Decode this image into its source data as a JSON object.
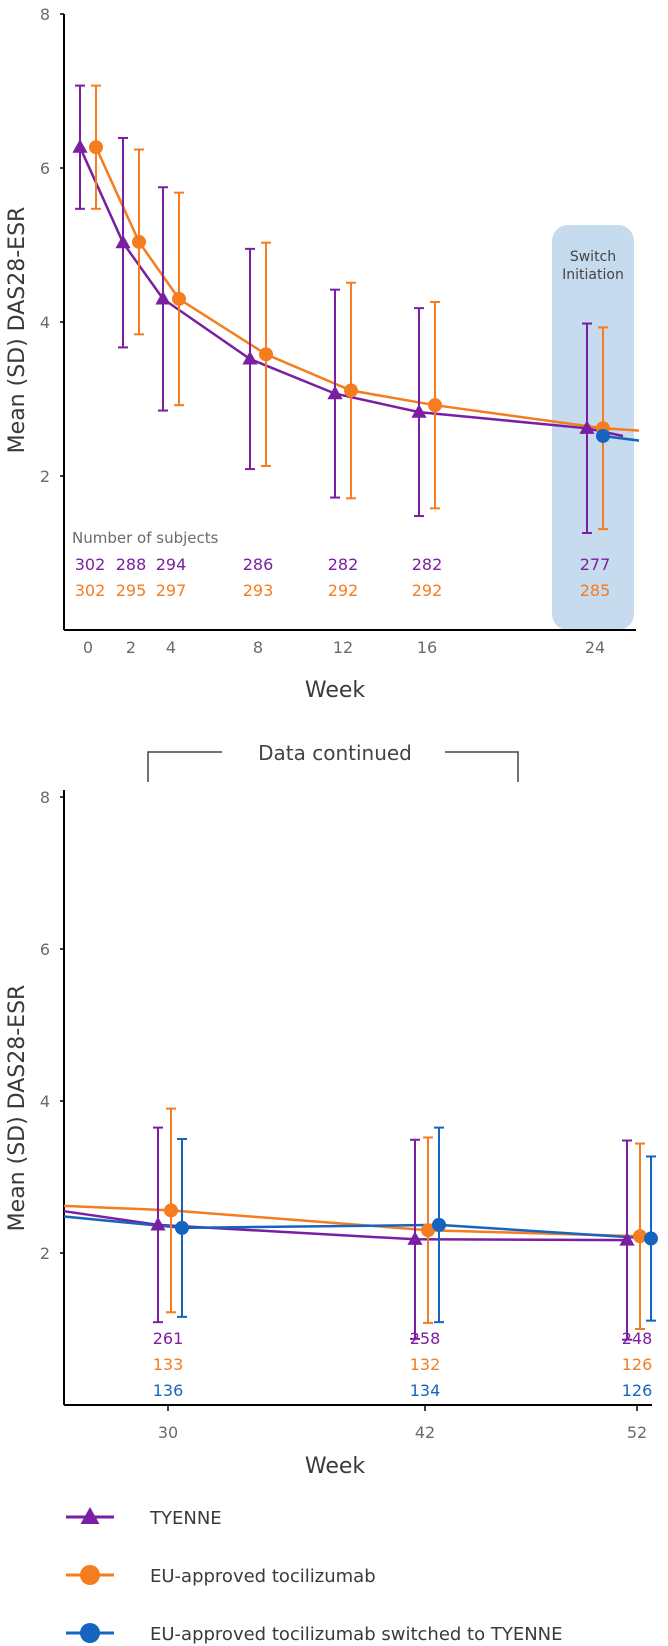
{
  "colors": {
    "tyenne": "#7b1fa2",
    "eu": "#f57c1f",
    "switched": "#1565c0",
    "switch_band": "#c7dbee",
    "axis": "#000000"
  },
  "chart_data": [
    {
      "type": "line",
      "ylabel": "Mean (SD) DAS28-ESR",
      "xlabel": "Week",
      "ylim": [
        0,
        8
      ],
      "yticks": [
        "2",
        "4",
        "6",
        "8"
      ],
      "xticks": [
        "0",
        "2",
        "4",
        "8",
        "12",
        "16",
        "24"
      ],
      "x": [
        0,
        2,
        4,
        8,
        12,
        16,
        24
      ],
      "switch_band": {
        "label_line1": "Switch",
        "label_line2": "Initiation",
        "week": 24
      },
      "subjects_title": "Number of subjects",
      "series": [
        {
          "name": "TYENNE",
          "marker": "triangle",
          "values": [
            6.27,
            5.03,
            4.3,
            3.52,
            3.07,
            2.83,
            2.62
          ],
          "sd": [
            0.8,
            1.36,
            1.45,
            1.43,
            1.35,
            1.35,
            1.36
          ],
          "counts": [
            "302",
            "288",
            "294",
            "286",
            "282",
            "282",
            "277"
          ]
        },
        {
          "name": "EU-approved tocilizumab",
          "marker": "circle",
          "values": [
            6.27,
            5.04,
            4.3,
            3.58,
            3.11,
            2.92,
            2.62
          ],
          "sd": [
            0.8,
            1.2,
            1.38,
            1.45,
            1.4,
            1.34,
            1.31
          ],
          "counts": [
            "302",
            "295",
            "297",
            "293",
            "292",
            "292",
            "285"
          ]
        },
        {
          "name": "EU-approved tocilizumab switched to TYENNE",
          "marker": "circle",
          "x": [
            24
          ],
          "values": [
            2.52
          ],
          "sd": [],
          "counts": []
        }
      ]
    },
    {
      "type": "line",
      "ylabel": "Mean (SD) DAS28-ESR",
      "xlabel": "Week",
      "ylim": [
        0,
        8
      ],
      "yticks": [
        "2",
        "4",
        "6",
        "8"
      ],
      "xticks": [
        "30",
        "42",
        "52"
      ],
      "x": [
        30,
        42,
        52
      ],
      "series": [
        {
          "name": "TYENNE",
          "marker": "triangle",
          "values": [
            2.37,
            2.18,
            2.17
          ],
          "sd": [
            1.28,
            1.31,
            1.31
          ],
          "counts": [
            "261",
            "258",
            "248"
          ]
        },
        {
          "name": "EU-approved tocilizumab",
          "marker": "circle",
          "values": [
            2.56,
            2.3,
            2.22
          ],
          "sd": [
            1.34,
            1.22,
            1.22
          ],
          "counts": [
            "133",
            "132",
            "126"
          ]
        },
        {
          "name": "EU-approved tocilizumab switched to TYENNE",
          "marker": "circle",
          "values": [
            2.33,
            2.37,
            2.19
          ],
          "sd": [
            1.17,
            1.28,
            1.08
          ],
          "counts": [
            "136",
            "134",
            "126"
          ]
        }
      ]
    }
  ],
  "continued_label": "Data continued",
  "legend": [
    {
      "label": "TYENNE",
      "marker": "triangle",
      "color": "#7b1fa2"
    },
    {
      "label": "EU-approved tocilizumab",
      "marker": "circle",
      "color": "#f57c1f"
    },
    {
      "label": "EU-approved tocilizumab switched to TYENNE",
      "marker": "circle",
      "color": "#1565c0"
    }
  ]
}
